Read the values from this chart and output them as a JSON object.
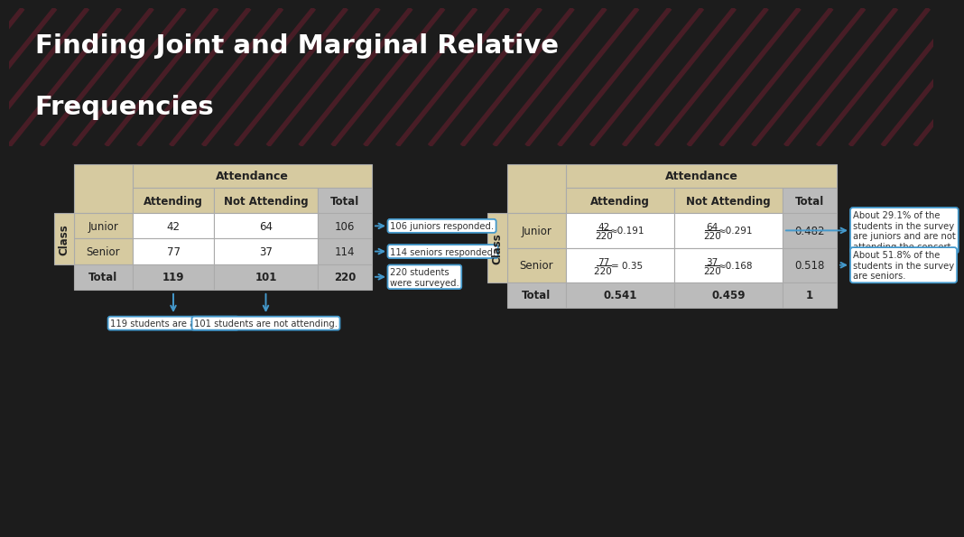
{
  "title_line1": "Finding Joint and Marginal Relative",
  "title_line2": "Frequencies",
  "title_bg": "#E84D6A",
  "title_color": "#FFFFFF",
  "slide_bg": "#1C1C1C",
  "content_bg": "#F0F0F0",
  "table_bg": "#FFFFFF",
  "table1": {
    "header_bg": "#D6CAA0",
    "total_bg": "#BBBBBB",
    "cell_bg": "#FFFFFF",
    "border_color": "#AAAAAA",
    "col_header": "Attendance",
    "col_subheaders": [
      "Attending",
      "Not Attending",
      "Total"
    ],
    "row_header": "Class",
    "rows": [
      {
        "label": "Junior",
        "vals": [
          "42",
          "64",
          "106"
        ]
      },
      {
        "label": "Senior",
        "vals": [
          "77",
          "37",
          "114"
        ]
      },
      {
        "label": "Total",
        "vals": [
          "119",
          "101",
          "220"
        ]
      }
    ],
    "annotations_right": [
      {
        "text": "106 juniors responded.",
        "row": 0
      },
      {
        "text": "114 seniors responded.",
        "row": 1
      },
      {
        "text": "220 students\nwere surveyed.",
        "row": 2
      }
    ],
    "annotations_bottom": [
      {
        "text": "119 students are attending.",
        "col": 0
      },
      {
        "text": "101 students are not attending.",
        "col": 1
      }
    ]
  },
  "table2": {
    "header_bg": "#D6CAA0",
    "total_bg": "#BBBBBB",
    "cell_bg": "#FFFFFF",
    "border_color": "#AAAAAA",
    "col_header": "Attendance",
    "col_subheaders": [
      "Attending",
      "Not Attending",
      "Total"
    ],
    "row_header": "Class",
    "rows": [
      {
        "label": "Junior",
        "vals": [
          "42/220≈0.191",
          "64/220≈0.291",
          "0.482"
        ]
      },
      {
        "label": "Senior",
        "vals": [
          "77/220 = 0.35",
          "37/220≈0.168",
          "0.518"
        ]
      },
      {
        "label": "Total",
        "vals": [
          "0.541",
          "0.459",
          "1"
        ]
      }
    ],
    "ann_right_junior": "About 29.1% of the\nstudents in the survey\nare juniors and are not\nattending the concert.",
    "ann_right_senior": "About 51.8% of the\nstudents in the survey\nare seniors."
  },
  "annotation_color": "#4499CC",
  "stripe_color": "#CC2244"
}
